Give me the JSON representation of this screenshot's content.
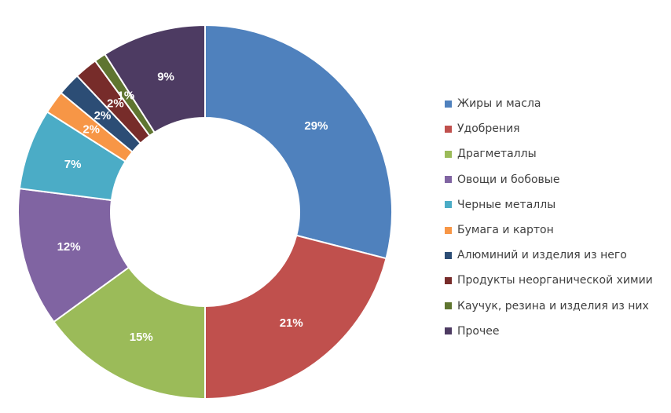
{
  "chart_data": {
    "type": "pie",
    "donut": true,
    "title": "",
    "legend_position": "right",
    "categories": [
      "Жиры и масла",
      "Удобрения",
      "Драгметаллы",
      "Овощи и бобовые",
      "Черные металлы",
      "Бумага и картон",
      "Алюминий и изделия из него",
      "Продукты неорганической химии",
      "Каучук, резина и изделия из них",
      "Прочее"
    ],
    "values": [
      29,
      21,
      15,
      12,
      7,
      2,
      2,
      2,
      1,
      9
    ],
    "labels": [
      "29%",
      "21%",
      "15%",
      "12%",
      "7%",
      "2%",
      "2%",
      "2%",
      "1%",
      "9%"
    ],
    "colors": [
      "#4F81BD",
      "#C0504D",
      "#9BBB59",
      "#8064A2",
      "#4BACC6",
      "#F79646",
      "#2C4D75",
      "#772C2A",
      "#5F7530",
      "#4D3B62"
    ]
  }
}
